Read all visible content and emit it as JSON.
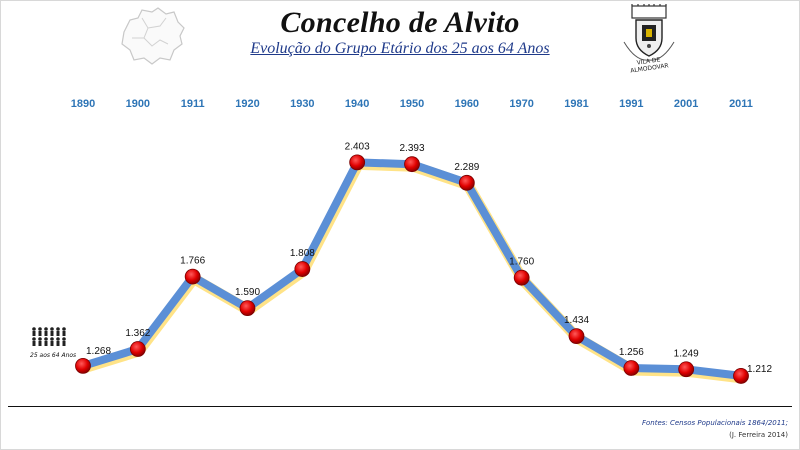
{
  "header": {
    "title": "Concelho de Alvito",
    "subtitle": "Evolução do Grupo Etário dos 25 aos 64 Anos",
    "crest_text": "VILA DE ALMODOVAR"
  },
  "legend_icon": {
    "label": "25 aos 64 Anos"
  },
  "footer": {
    "source": "Fontes: Censos Populacionais 1864/2011;",
    "author": "(J. Ferreira 2014)"
  },
  "colors": {
    "line": "#5b8fd6",
    "line_glow": "#ffe07a",
    "marker": "#e00000",
    "year_label": "#2e75b6"
  },
  "chart_data": {
    "type": "line",
    "title": "Evolução do Grupo Etário dos 25 aos 64 Anos",
    "categories": [
      "1890",
      "1900",
      "1911",
      "1920",
      "1930",
      "1940",
      "1950",
      "1960",
      "1970",
      "1981",
      "1991",
      "2001",
      "2011"
    ],
    "values": [
      1268,
      1362,
      1766,
      1590,
      1808,
      2403,
      2393,
      2289,
      1760,
      1434,
      1256,
      1249,
      1212
    ],
    "labels": [
      "1.268",
      "1.362",
      "1.766",
      "1.590",
      "1.808",
      "2.403",
      "2.393",
      "2.289",
      "1.760",
      "1.434",
      "1.256",
      "1.249",
      "1.212"
    ],
    "ylim": [
      1100,
      2500
    ],
    "grid": false,
    "xaxis_position": "top"
  }
}
